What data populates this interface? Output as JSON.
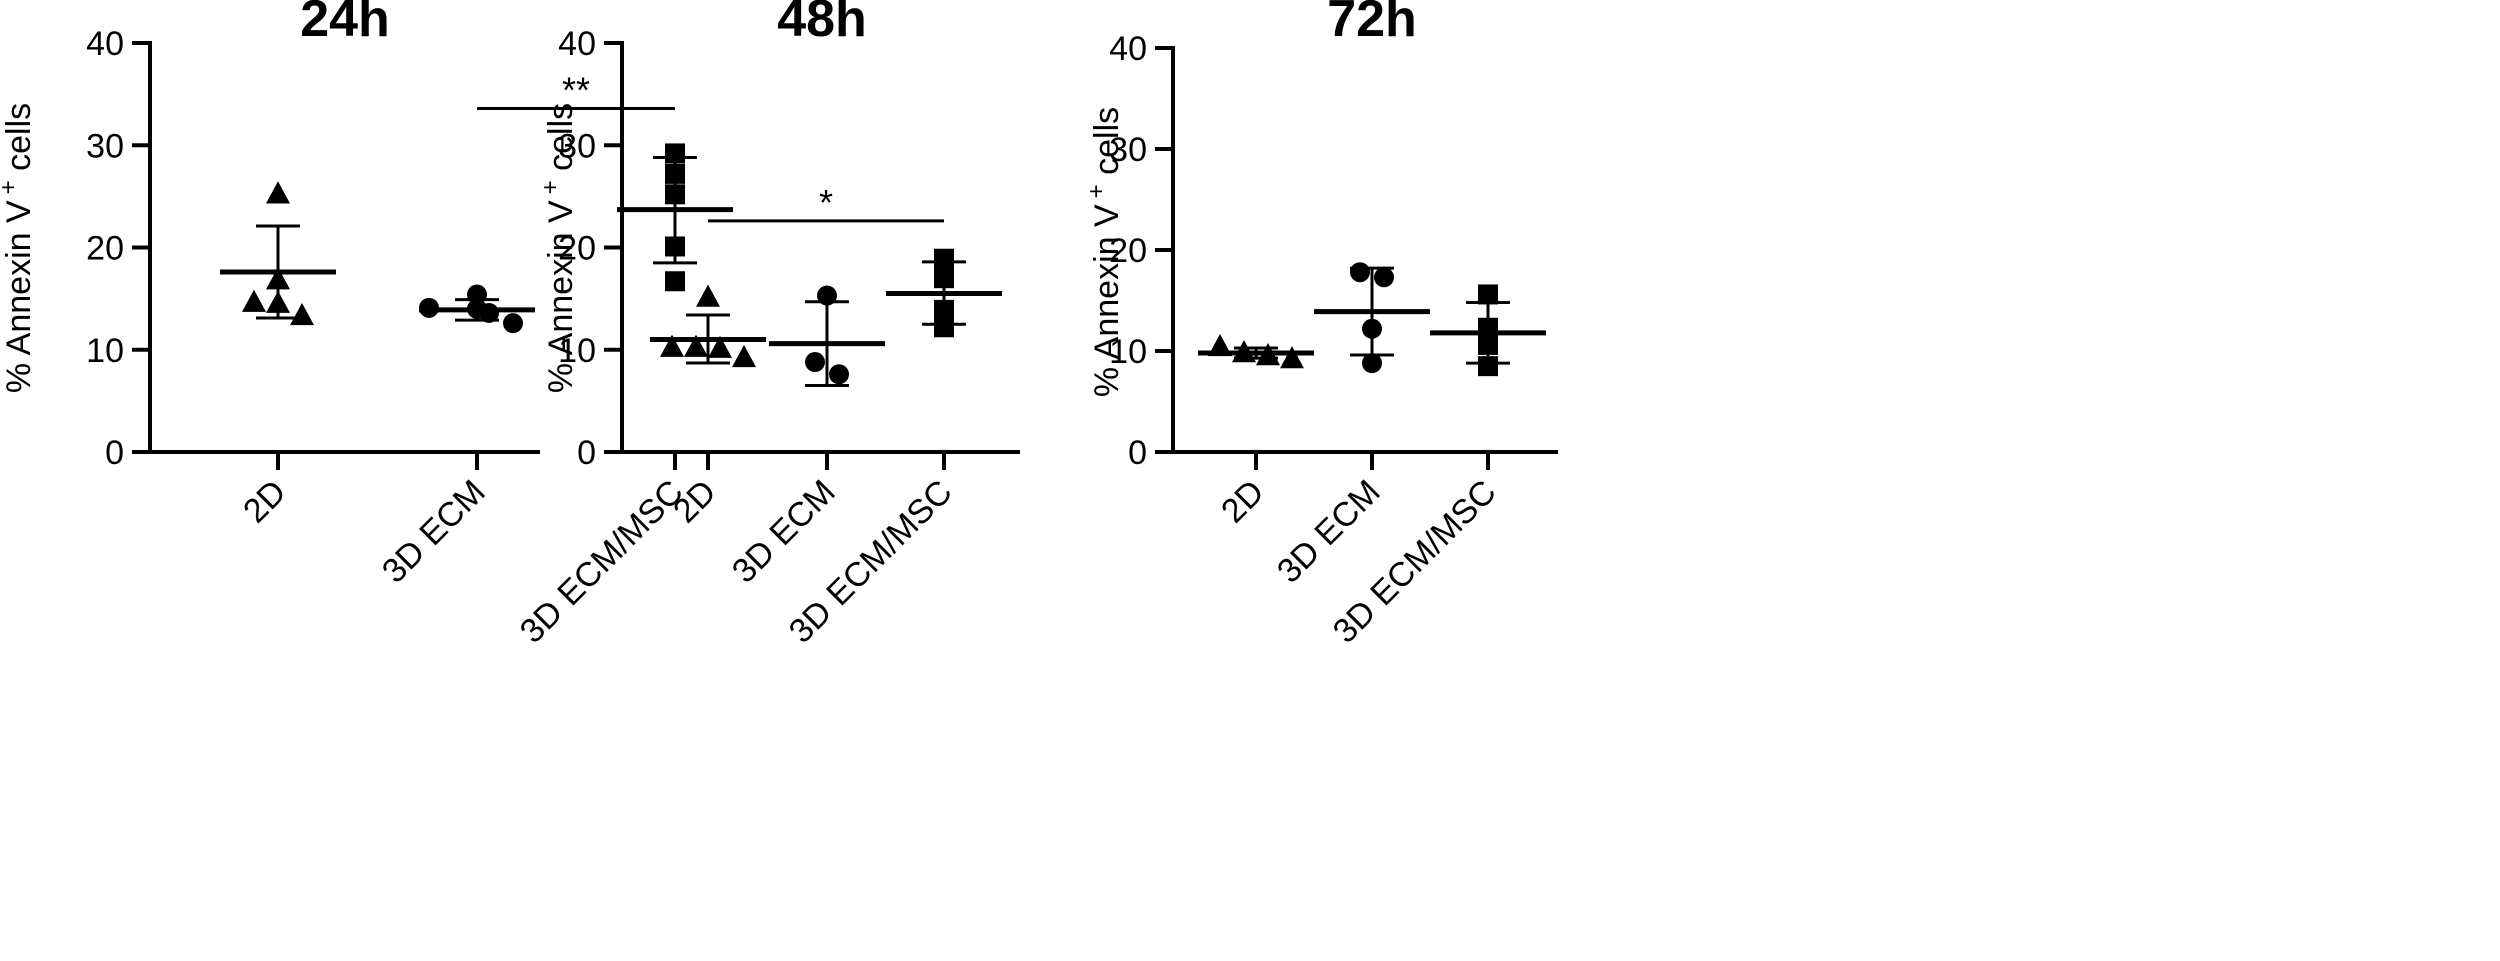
{
  "chart_data": [
    {
      "type": "scatter",
      "title": "24h",
      "ylabel_main": "% Annexin V",
      "ylabel_sup": "+",
      "ylabel_tail": " cells",
      "ylim": [
        0,
        40
      ],
      "yticks": [
        "0",
        "10",
        "20",
        "30",
        "40"
      ],
      "categories": [
        "2D",
        "3D ECM",
        "3D ECM/MSC"
      ],
      "groups": [
        {
          "category": "2D",
          "marker": "triangle",
          "points": [
            25.3,
            16.9,
            14.7,
            14.6,
            13.4
          ],
          "mean": 17.6,
          "sd_low": 13.1,
          "sd_high": 22.1
        },
        {
          "category": "3D ECM",
          "marker": "circle",
          "points": [
            14.1,
            15.4,
            14.0,
            13.6,
            12.6
          ],
          "mean": 13.9,
          "sd_low": 12.9,
          "sd_high": 14.9
        },
        {
          "category": "3D ECM/MSC",
          "marker": "square",
          "points": [
            29.2,
            27.2,
            25.2,
            20.1,
            16.7
          ],
          "mean": 23.7,
          "sd_low": 18.5,
          "sd_high": 28.8
        }
      ],
      "significance": [
        {
          "from": "3D ECM",
          "to": "3D ECM/MSC",
          "label": "**",
          "y": 33.6
        }
      ]
    },
    {
      "type": "scatter",
      "title": "48h",
      "ylabel_main": "% Annexin V",
      "ylabel_sup": "+",
      "ylabel_tail": " cells",
      "ylim": [
        0,
        40
      ],
      "yticks": [
        "0",
        "10",
        "20",
        "30",
        "40"
      ],
      "categories": [
        "2D",
        "3D ECM",
        "3D ECM/MSC"
      ],
      "groups": [
        {
          "category": "2D",
          "marker": "triangle",
          "points": [
            15.2,
            10.3,
            10.3,
            10.2,
            9.3
          ],
          "mean": 11.0,
          "sd_low": 8.7,
          "sd_high": 13.4
        },
        {
          "category": "3D ECM",
          "marker": "circle",
          "points": [
            15.3,
            8.8,
            7.6
          ],
          "mean": 10.6,
          "sd_low": 6.5,
          "sd_high": 14.7
        },
        {
          "category": "3D ECM/MSC",
          "marker": "square",
          "points": [
            18.9,
            17.0,
            13.9,
            12.2
          ],
          "mean": 15.5,
          "sd_low": 12.5,
          "sd_high": 18.6
        }
      ],
      "significance": [
        {
          "from": "2D",
          "to": "3D ECM/MSC",
          "label": "*",
          "y": 22.6
        }
      ]
    },
    {
      "type": "scatter",
      "title": "72h",
      "ylabel_main": "% Annexin V",
      "ylabel_sup": "+",
      "ylabel_tail": " cells",
      "ylim": [
        0,
        40
      ],
      "yticks": [
        "0",
        "10",
        "20",
        "30",
        "40"
      ],
      "categories": [
        "2D",
        "3D ECM",
        "3D ECM/MSC"
      ],
      "groups": [
        {
          "category": "2D",
          "marker": "triangle",
          "points": [
            10.5,
            9.9,
            9.6,
            9.3
          ],
          "mean": 9.8,
          "sd_low": 9.3,
          "sd_high": 10.3
        },
        {
          "category": "3D ECM",
          "marker": "circle",
          "points": [
            17.8,
            17.3,
            12.2,
            8.8
          ],
          "mean": 13.9,
          "sd_low": 9.6,
          "sd_high": 18.2
        },
        {
          "category": "3D ECM/MSC",
          "marker": "square",
          "points": [
            15.6,
            12.3,
            10.6,
            8.5
          ],
          "mean": 11.8,
          "sd_low": 8.8,
          "sd_high": 14.8
        }
      ],
      "significance": []
    }
  ]
}
